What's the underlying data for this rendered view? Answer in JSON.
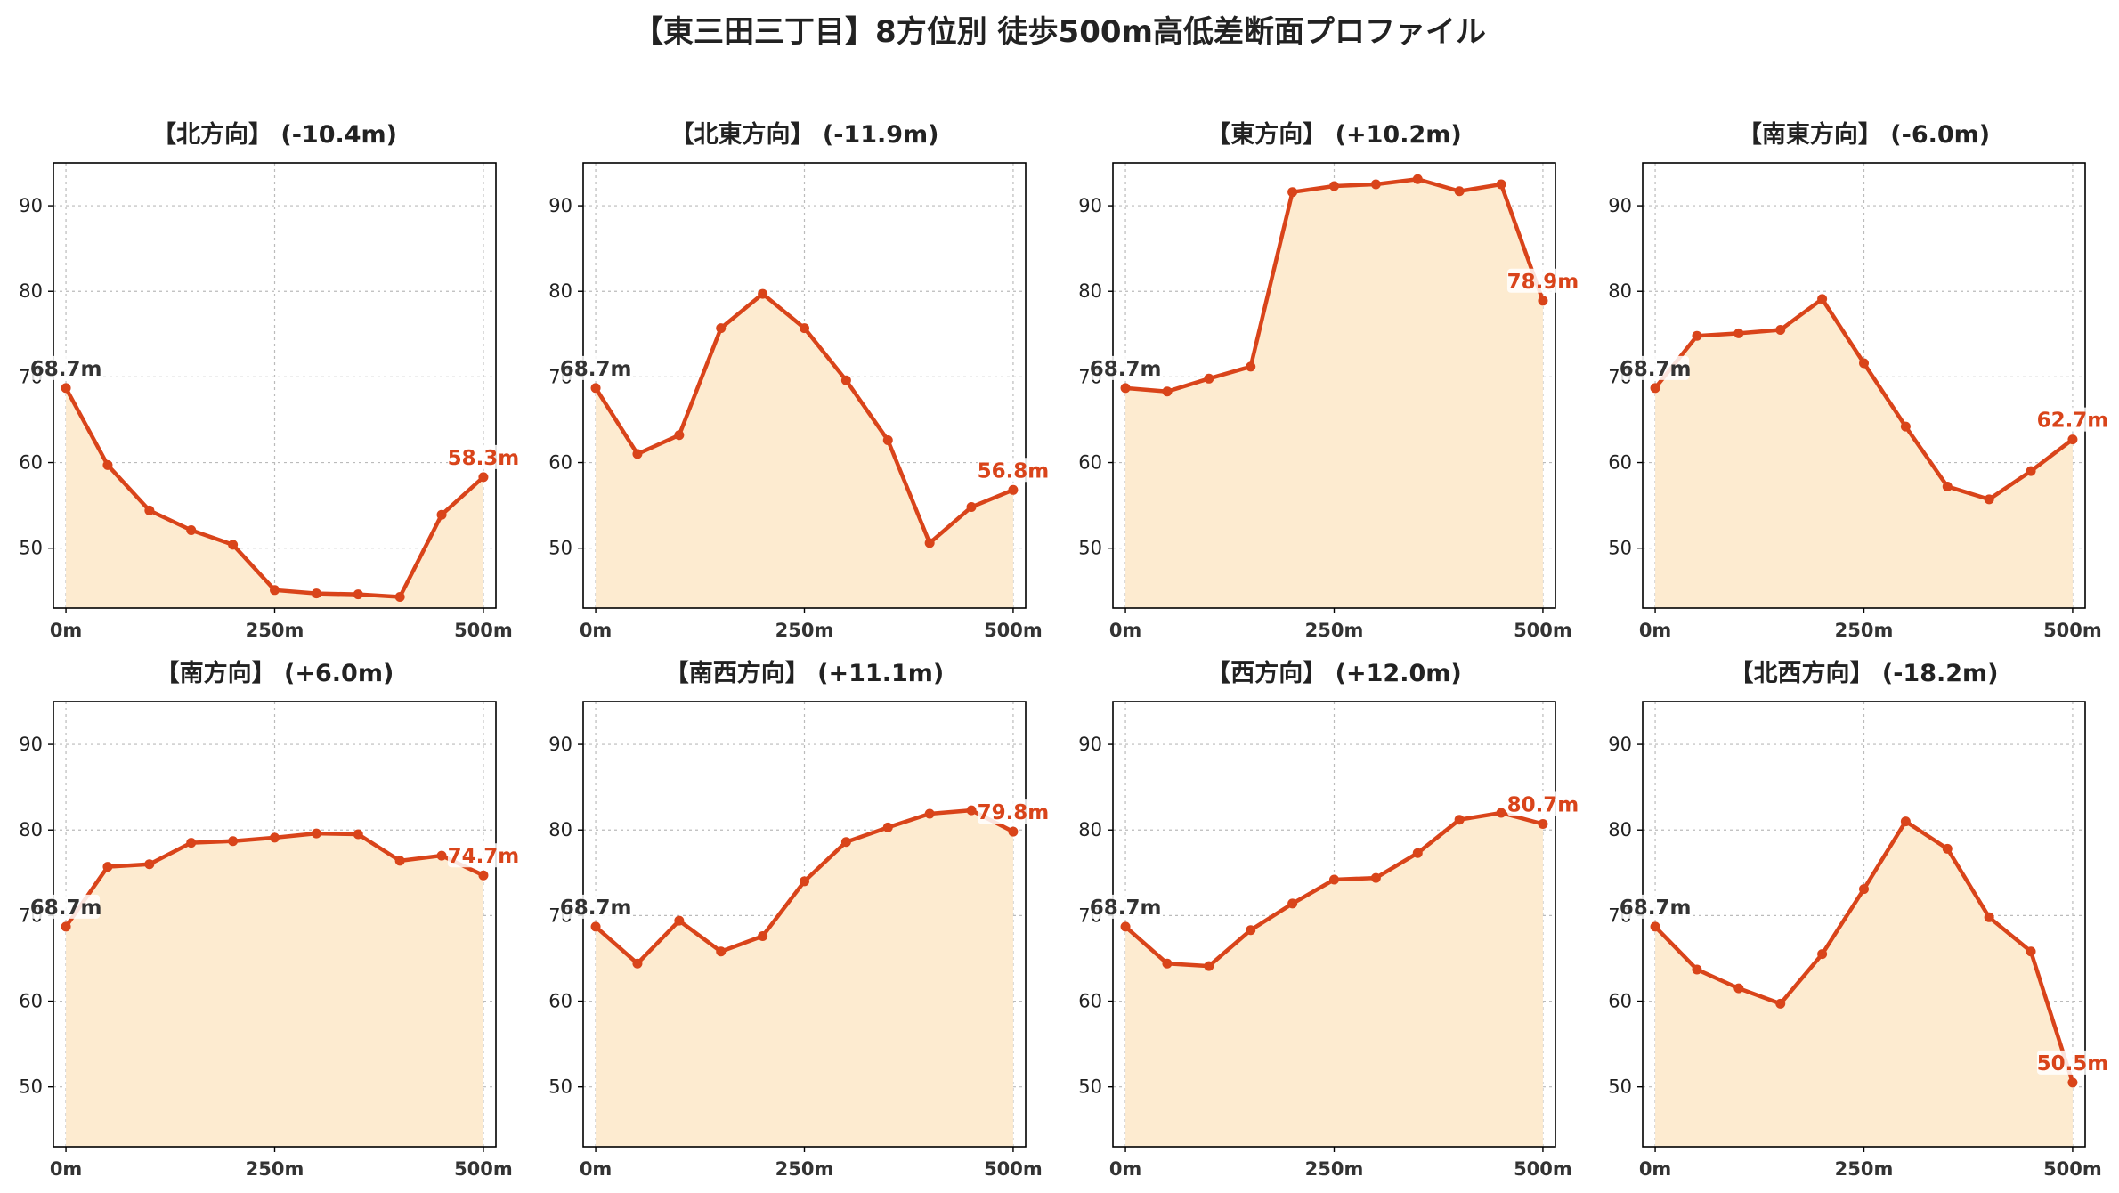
{
  "title": "【東三田三丁目】8方位別 徒歩500m高低差断面プロファイル",
  "colors": {
    "line": "#D9441A",
    "fill": "#FDEBD0",
    "start_label": "#333333",
    "end_label": "#D9441A",
    "grid": "#BBBBBB"
  },
  "chart_data": [
    {
      "type": "area",
      "title": "【北方向】 (-10.4m)",
      "xlabel": "",
      "ylabel": "",
      "x": [
        0,
        50,
        100,
        150,
        200,
        250,
        300,
        350,
        400,
        450,
        500
      ],
      "y": [
        68.7,
        59.7,
        54.4,
        52.1,
        50.4,
        45.1,
        44.7,
        44.6,
        44.3,
        53.9,
        58.3
      ],
      "x_ticks": [
        "0m",
        "250m",
        "500m"
      ],
      "y_ticks": [
        50,
        60,
        70,
        80,
        90
      ],
      "xlim": [
        -15,
        515
      ],
      "ylim": [
        43,
        95
      ],
      "grid": true,
      "start_label": "68.7m",
      "end_label": "58.3m"
    },
    {
      "type": "area",
      "title": "【北東方向】 (-11.9m)",
      "xlabel": "",
      "ylabel": "",
      "x": [
        0,
        50,
        100,
        150,
        200,
        250,
        300,
        350,
        400,
        450,
        500
      ],
      "y": [
        68.7,
        61.0,
        63.2,
        75.7,
        79.7,
        75.7,
        69.6,
        62.6,
        50.6,
        54.8,
        56.8
      ],
      "x_ticks": [
        "0m",
        "250m",
        "500m"
      ],
      "y_ticks": [
        50,
        60,
        70,
        80,
        90
      ],
      "xlim": [
        -15,
        515
      ],
      "ylim": [
        43,
        95
      ],
      "grid": true,
      "start_label": "68.7m",
      "end_label": "56.8m"
    },
    {
      "type": "area",
      "title": "【東方向】 (+10.2m)",
      "xlabel": "",
      "ylabel": "",
      "x": [
        0,
        50,
        100,
        150,
        200,
        250,
        300,
        350,
        400,
        450,
        500
      ],
      "y": [
        68.7,
        68.3,
        69.8,
        71.2,
        91.6,
        92.3,
        92.5,
        93.1,
        91.7,
        92.5,
        78.9
      ],
      "x_ticks": [
        "0m",
        "250m",
        "500m"
      ],
      "y_ticks": [
        50,
        60,
        70,
        80,
        90
      ],
      "xlim": [
        -15,
        515
      ],
      "ylim": [
        43,
        95
      ],
      "grid": true,
      "start_label": "68.7m",
      "end_label": "78.9m"
    },
    {
      "type": "area",
      "title": "【南東方向】 (-6.0m)",
      "xlabel": "",
      "ylabel": "",
      "x": [
        0,
        50,
        100,
        150,
        200,
        250,
        300,
        350,
        400,
        450,
        500
      ],
      "y": [
        68.7,
        74.8,
        75.1,
        75.5,
        79.1,
        71.6,
        64.2,
        57.2,
        55.7,
        59.0,
        62.7
      ],
      "x_ticks": [
        "0m",
        "250m",
        "500m"
      ],
      "y_ticks": [
        50,
        60,
        70,
        80,
        90
      ],
      "xlim": [
        -15,
        515
      ],
      "ylim": [
        43,
        95
      ],
      "grid": true,
      "start_label": "68.7m",
      "end_label": "62.7m"
    },
    {
      "type": "area",
      "title": "【南方向】 (+6.0m)",
      "xlabel": "",
      "ylabel": "",
      "x": [
        0,
        50,
        100,
        150,
        200,
        250,
        300,
        350,
        400,
        450,
        500
      ],
      "y": [
        68.7,
        75.7,
        76.0,
        78.5,
        78.7,
        79.1,
        79.6,
        79.5,
        76.4,
        77.0,
        74.7
      ],
      "x_ticks": [
        "0m",
        "250m",
        "500m"
      ],
      "y_ticks": [
        50,
        60,
        70,
        80,
        90
      ],
      "xlim": [
        -15,
        515
      ],
      "ylim": [
        43,
        95
      ],
      "grid": true,
      "start_label": "68.7m",
      "end_label": "74.7m"
    },
    {
      "type": "area",
      "title": "【南西方向】 (+11.1m)",
      "xlabel": "",
      "ylabel": "",
      "x": [
        0,
        50,
        100,
        150,
        200,
        250,
        300,
        350,
        400,
        450,
        500
      ],
      "y": [
        68.7,
        64.4,
        69.4,
        65.8,
        67.6,
        74.0,
        78.6,
        80.3,
        81.9,
        82.3,
        79.8
      ],
      "x_ticks": [
        "0m",
        "250m",
        "500m"
      ],
      "y_ticks": [
        50,
        60,
        70,
        80,
        90
      ],
      "xlim": [
        -15,
        515
      ],
      "ylim": [
        43,
        95
      ],
      "grid": true,
      "start_label": "68.7m",
      "end_label": "79.8m"
    },
    {
      "type": "area",
      "title": "【西方向】 (+12.0m)",
      "xlabel": "",
      "ylabel": "",
      "x": [
        0,
        50,
        100,
        150,
        200,
        250,
        300,
        350,
        400,
        450,
        500
      ],
      "y": [
        68.7,
        64.4,
        64.1,
        68.3,
        71.4,
        74.2,
        74.4,
        77.3,
        81.2,
        82.0,
        80.7
      ],
      "x_ticks": [
        "0m",
        "250m",
        "500m"
      ],
      "y_ticks": [
        50,
        60,
        70,
        80,
        90
      ],
      "xlim": [
        -15,
        515
      ],
      "ylim": [
        43,
        95
      ],
      "grid": true,
      "start_label": "68.7m",
      "end_label": "80.7m"
    },
    {
      "type": "area",
      "title": "【北西方向】 (-18.2m)",
      "xlabel": "",
      "ylabel": "",
      "x": [
        0,
        50,
        100,
        150,
        200,
        250,
        300,
        350,
        400,
        450,
        500
      ],
      "y": [
        68.7,
        63.7,
        61.5,
        59.7,
        65.5,
        73.1,
        81.0,
        77.8,
        69.8,
        65.8,
        50.5
      ],
      "x_ticks": [
        "0m",
        "250m",
        "500m"
      ],
      "y_ticks": [
        50,
        60,
        70,
        80,
        90
      ],
      "xlim": [
        -15,
        515
      ],
      "ylim": [
        43,
        95
      ],
      "grid": true,
      "start_label": "68.7m",
      "end_label": "50.5m"
    }
  ]
}
